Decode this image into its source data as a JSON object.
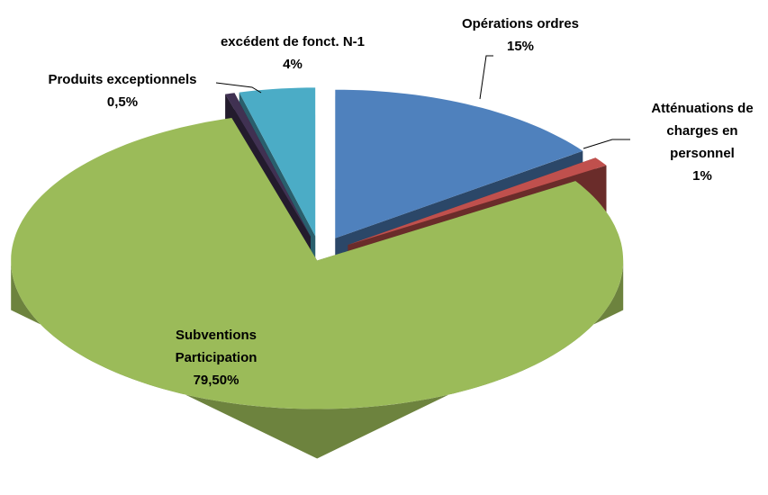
{
  "chart_data": {
    "type": "pie",
    "categories": [
      "Opérations ordres",
      "Atténuations de charges en personnel",
      "Subventions Participation",
      "Produits exceptionnels",
      "excédent de fonct. N-1"
    ],
    "values": [
      15,
      1,
      79.5,
      0.5,
      4
    ],
    "value_labels": [
      "15%",
      "1%",
      "79,50%",
      "0,5%",
      "4%"
    ],
    "colors": [
      "#4f81bd",
      "#c0504d",
      "#9bbb59",
      "#403152",
      "#4bacc6"
    ]
  }
}
